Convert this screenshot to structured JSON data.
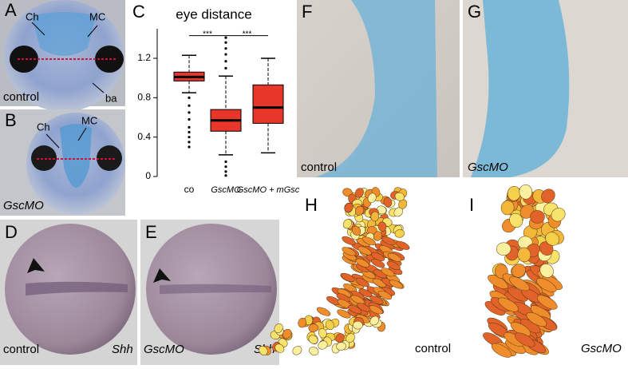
{
  "panels": {
    "A": {
      "letter": "A",
      "labels": [
        "Ch",
        "MC",
        "ba"
      ],
      "caption": "control"
    },
    "B": {
      "letter": "B",
      "labels": [
        "Ch",
        "MC"
      ],
      "caption": "GscMO"
    },
    "D": {
      "letter": "D",
      "caption": "control",
      "gene": "Shh"
    },
    "E": {
      "letter": "E",
      "caption": "GscMO",
      "gene": "Shh"
    },
    "F": {
      "letter": "F",
      "caption": "control"
    },
    "G": {
      "letter": "G",
      "caption": "GscMO"
    },
    "H": {
      "letter": "H",
      "caption": "control"
    },
    "I": {
      "letter": "I",
      "caption": "GscMO"
    }
  },
  "chart_data": {
    "type": "box",
    "letter": "C",
    "title": "eye distance",
    "categories": [
      "co",
      "GscMO",
      "GscMO + mGsc"
    ],
    "color": "#e8362a",
    "series": [
      {
        "whisker_low": [
          0.85,
          0.22,
          0.24
        ],
        "q1": [
          0.97,
          0.46,
          0.54
        ],
        "median": [
          1.01,
          0.57,
          0.7
        ],
        "q3": [
          1.06,
          0.68,
          0.93
        ],
        "whisker_high": [
          1.23,
          1.02,
          1.2
        ],
        "outliers": [
          [
            0.8,
            0.72,
            0.65,
            0.58,
            0.5,
            0.45,
            0.4,
            0.35,
            0.3
          ],
          [
            1.1,
            1.17,
            1.24,
            1.3,
            1.36,
            1.41,
            0.15,
            0.1,
            0.05,
            0.01
          ],
          []
        ]
      }
    ],
    "significance": [
      {
        "from": 0,
        "to": 1,
        "label": "***",
        "y": 1.43
      },
      {
        "from": 1,
        "to": 2,
        "label": "***",
        "y": 1.43
      }
    ],
    "ylim": [
      0,
      1.5
    ],
    "yticks": [
      0,
      0.4,
      0.8,
      1.2
    ]
  }
}
